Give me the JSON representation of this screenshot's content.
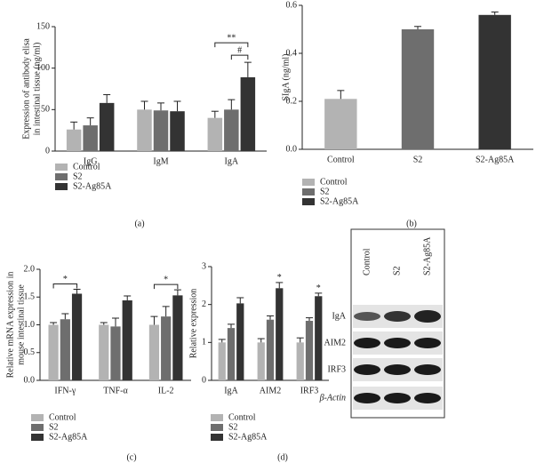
{
  "chart_data": [
    {
      "type": "bar",
      "ylabel": [
        "Expression of antibody elisa",
        "in intestinal tissue (ng/ml)"
      ],
      "categories": [
        "IgG",
        "IgM",
        "IgA"
      ],
      "series": [
        {
          "name": "Control",
          "color": "#b3b3b3",
          "values": [
            26,
            50,
            40
          ],
          "errors": [
            9,
            10,
            8
          ]
        },
        {
          "name": "S2",
          "color": "#6e6e6e",
          "values": [
            31,
            49,
            50
          ],
          "errors": [
            9,
            9,
            12
          ]
        },
        {
          "name": "S2-Ag85A",
          "color": "#333333",
          "values": [
            58,
            48,
            89
          ],
          "errors": [
            10,
            12,
            18
          ]
        }
      ],
      "ylim": [
        0,
        150
      ],
      "yticks": [
        0,
        50,
        100,
        150
      ],
      "annotations": [
        "**",
        "#"
      ],
      "caption": "(a)"
    },
    {
      "type": "bar",
      "ylabel": [
        "SIgA (ng/ml)"
      ],
      "categories": [
        "Control",
        "S2",
        "S2-Ag85A"
      ],
      "values": [
        0.21,
        0.5,
        0.56
      ],
      "errors": [
        0.035,
        0.012,
        0.012
      ],
      "colors": [
        "#b3b3b3",
        "#6e6e6e",
        "#333333"
      ],
      "ylim": [
        0,
        0.6
      ],
      "yticks": [
        {
          "value": 0,
          "label": "0.0"
        },
        0.2,
        0.4,
        0.6
      ],
      "caption": "(b)"
    },
    {
      "type": "bar",
      "ylabel": [
        "Relative mRNA expression in",
        "mouse intestinal tissue"
      ],
      "categories": [
        "IFN-γ",
        "TNF-α",
        "IL-2"
      ],
      "series": [
        {
          "name": "Control",
          "color": "#b3b3b3",
          "values": [
            1.0,
            1.0,
            1.0
          ],
          "errors": [
            0.04,
            0.04,
            0.15
          ]
        },
        {
          "name": "S2",
          "color": "#6e6e6e",
          "values": [
            1.1,
            0.97,
            1.15
          ],
          "errors": [
            0.1,
            0.15,
            0.18
          ]
        },
        {
          "name": "S2-Ag85A",
          "color": "#333333",
          "values": [
            1.56,
            1.44,
            1.53
          ],
          "errors": [
            0.08,
            0.08,
            0.1
          ]
        }
      ],
      "ylim": [
        0,
        2
      ],
      "yticks": [
        {
          "value": 0,
          "label": "0.0"
        },
        0.5,
        {
          "value": 1,
          "label": "1.0"
        },
        1.5,
        {
          "value": 2,
          "label": "2.0"
        }
      ],
      "annotations": [
        "*",
        "*"
      ],
      "caption": "(c)"
    },
    {
      "type": "bar",
      "ylabel": [
        "Relative expression"
      ],
      "categories": [
        "IgA",
        "AIM2",
        "IRF3"
      ],
      "series": [
        {
          "name": "Control",
          "color": "#b3b3b3",
          "values": [
            1.0,
            1.0,
            1.0
          ],
          "errors": [
            0.08,
            0.1,
            0.12
          ]
        },
        {
          "name": "S2",
          "color": "#6e6e6e",
          "values": [
            1.38,
            1.6,
            1.57
          ],
          "errors": [
            0.1,
            0.1,
            0.08
          ]
        },
        {
          "name": "S2-Ag85A",
          "color": "#333333",
          "values": [
            2.03,
            2.43,
            2.22
          ],
          "errors": [
            0.15,
            0.15,
            0.08
          ]
        }
      ],
      "ylim": [
        0,
        3
      ],
      "yticks": [
        0,
        1,
        2,
        3
      ],
      "annotations": [
        "*",
        "*"
      ],
      "caption": "(d)"
    }
  ],
  "blot": {
    "columns": [
      "Control",
      "S2",
      "S2-Ag85A"
    ],
    "rows": [
      "IgA",
      "AIM2",
      "IRF3",
      "β-Actin"
    ]
  }
}
